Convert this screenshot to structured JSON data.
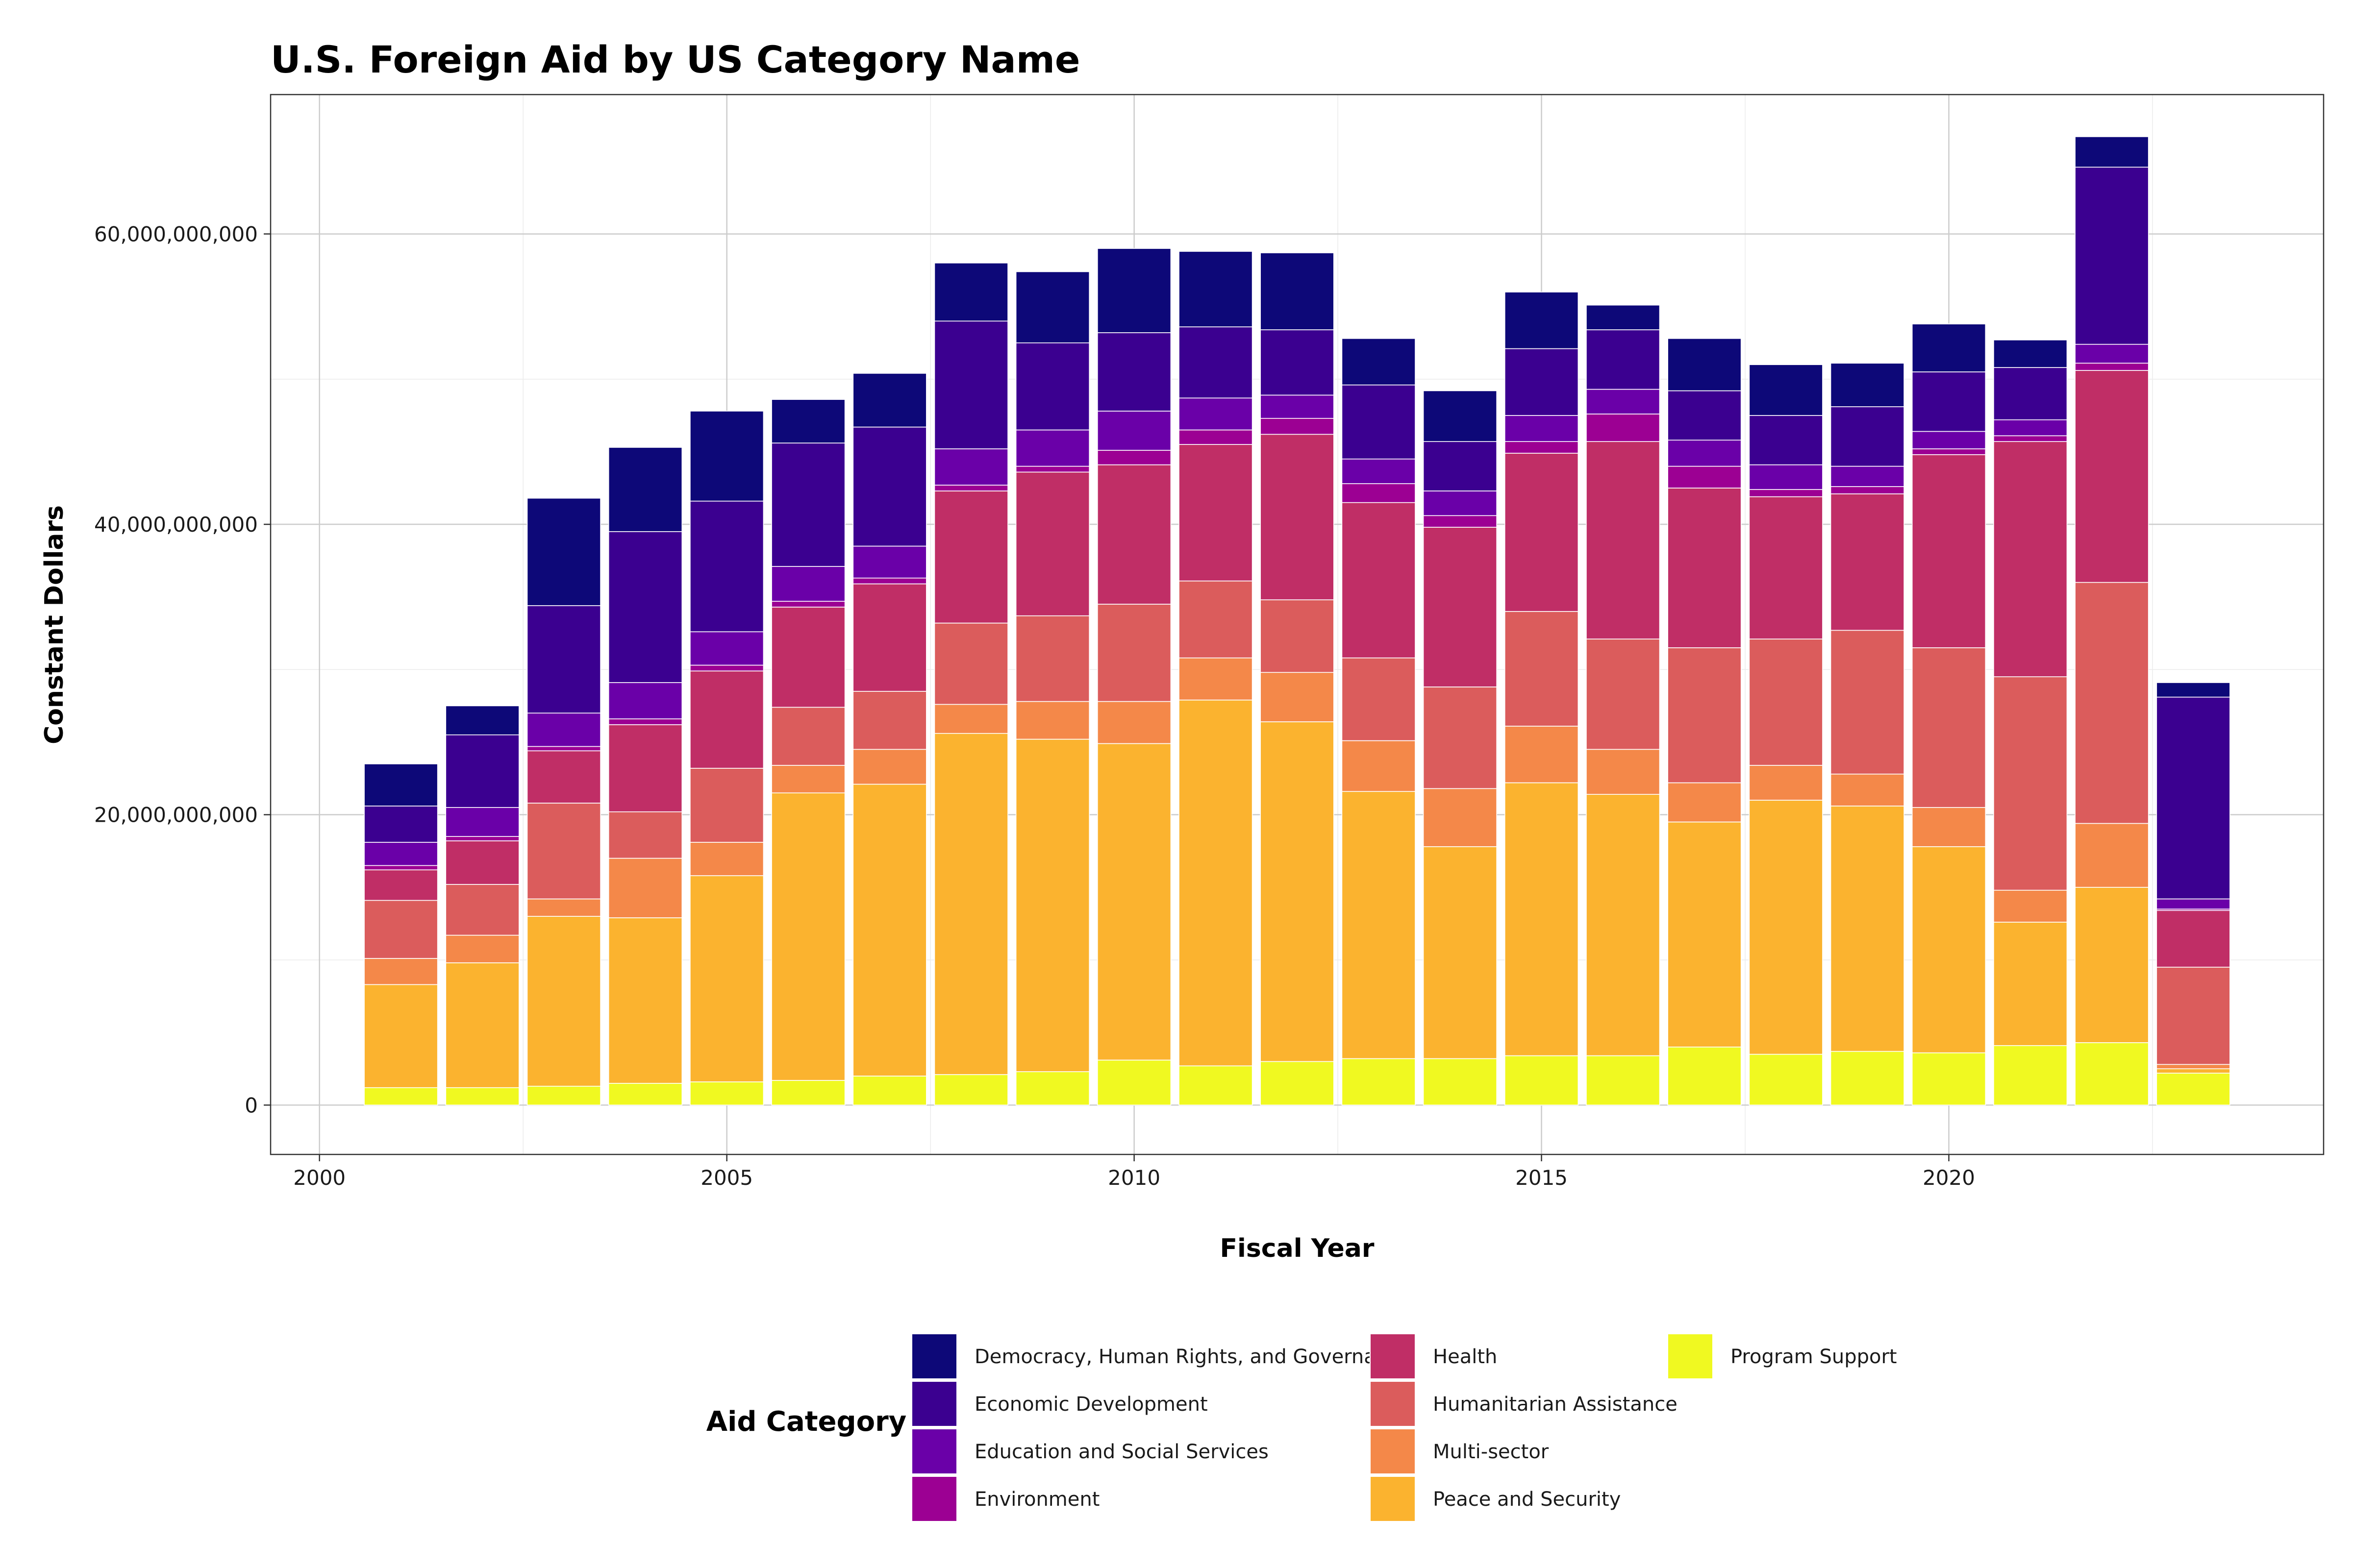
{
  "chart_data": {
    "type": "bar",
    "stacked": true,
    "title": "U.S. Foreign Aid by US Category Name",
    "xlabel": "Fiscal Year",
    "ylabel": "Constant Dollars",
    "xlim": [
      1999.4,
      2024.6
    ],
    "ylim": [
      -3400000000,
      69600000000
    ],
    "x_ticks": [
      2000,
      2005,
      2010,
      2015,
      2020
    ],
    "x_tick_labels": [
      "2000",
      "2005",
      "2010",
      "2015",
      "2020"
    ],
    "y_ticks": [
      0,
      20000000000,
      40000000000,
      60000000000
    ],
    "y_tick_labels": [
      "0",
      "20,000,000,000",
      "40,000,000,000",
      "60,000,000,000"
    ],
    "grid": true,
    "legend_title": "Aid Category",
    "legend_position": "bottom",
    "categories": [
      2001,
      2002,
      2003,
      2004,
      2005,
      2006,
      2007,
      2008,
      2009,
      2010,
      2011,
      2012,
      2013,
      2014,
      2015,
      2016,
      2017,
      2018,
      2019,
      2020,
      2021,
      2022,
      2023
    ],
    "series": [
      {
        "name": "Program Support",
        "color": "#f0f921",
        "values": [
          1200000000,
          1200000000,
          1300000000,
          1500000000,
          1600000000,
          1700000000,
          2000000000,
          2100000000,
          2300000000,
          3100000000,
          2700000000,
          3000000000,
          3200000000,
          3200000000,
          3400000000,
          3400000000,
          4000000000,
          3500000000,
          3700000000,
          3600000000,
          4100000000,
          4300000000,
          2200000000
        ]
      },
      {
        "name": "Peace and Security",
        "color": "#fbb32f",
        "values": [
          7100000000,
          8600000000,
          11700000000,
          11400000000,
          14200000000,
          19800000000,
          20100000000,
          23500000000,
          22900000000,
          21800000000,
          25200000000,
          23400000000,
          18400000000,
          14600000000,
          18800000000,
          18000000000,
          15500000000,
          17500000000,
          16900000000,
          14200000000,
          8500000000,
          10700000000,
          300000000
        ]
      },
      {
        "name": "Multi-sector",
        "color": "#f48849",
        "values": [
          1800000000,
          1900000000,
          1200000000,
          4100000000,
          2300000000,
          1900000000,
          2400000000,
          2000000000,
          2600000000,
          2900000000,
          2900000000,
          3400000000,
          3500000000,
          4000000000,
          3900000000,
          3100000000,
          2700000000,
          2400000000,
          2200000000,
          2700000000,
          2200000000,
          4400000000,
          300000000
        ]
      },
      {
        "name": "Humanitarian Assistance",
        "color": "#db5c5c",
        "values": [
          4000000000,
          3500000000,
          6600000000,
          3200000000,
          5100000000,
          4000000000,
          4000000000,
          5600000000,
          5900000000,
          6700000000,
          5300000000,
          5000000000,
          5700000000,
          7000000000,
          7900000000,
          7600000000,
          9300000000,
          8700000000,
          9900000000,
          11000000000,
          14700000000,
          16600000000,
          6700000000
        ]
      },
      {
        "name": "Health",
        "color": "#c02e66",
        "values": [
          2100000000,
          3000000000,
          3600000000,
          6000000000,
          6700000000,
          6900000000,
          7400000000,
          9100000000,
          9900000000,
          9600000000,
          9400000000,
          11400000000,
          10700000000,
          11000000000,
          10900000000,
          13600000000,
          11000000000,
          9800000000,
          9400000000,
          13300000000,
          16200000000,
          14600000000,
          3900000000
        ]
      },
      {
        "name": "Environment",
        "color": "#9c0093",
        "values": [
          300000000,
          300000000,
          300000000,
          400000000,
          400000000,
          400000000,
          400000000,
          400000000,
          400000000,
          1000000000,
          1000000000,
          1100000000,
          1300000000,
          800000000,
          800000000,
          1900000000,
          1500000000,
          500000000,
          500000000,
          400000000,
          400000000,
          500000000,
          100000000
        ]
      },
      {
        "name": "Education and Social Services",
        "color": "#6a00a8",
        "values": [
          1600000000,
          2000000000,
          2300000000,
          2500000000,
          2300000000,
          2400000000,
          2200000000,
          2500000000,
          2500000000,
          2700000000,
          2200000000,
          1600000000,
          1700000000,
          1700000000,
          1800000000,
          1700000000,
          1800000000,
          1700000000,
          1400000000,
          1200000000,
          1100000000,
          1300000000,
          700000000
        ]
      },
      {
        "name": "Economic Development",
        "color": "#3b0090",
        "values": [
          2500000000,
          5000000000,
          7400000000,
          10400000000,
          9000000000,
          8500000000,
          8200000000,
          8800000000,
          6000000000,
          5400000000,
          4900000000,
          4500000000,
          5100000000,
          3400000000,
          4600000000,
          4100000000,
          3400000000,
          3400000000,
          4100000000,
          4100000000,
          3600000000,
          12200000000,
          13900000000
        ]
      },
      {
        "name": "Democracy, Human Rights, and Governance",
        "color": "#0d0878",
        "values": [
          2900000000,
          2000000000,
          7400000000,
          5800000000,
          6200000000,
          3000000000,
          3700000000,
          4000000000,
          4900000000,
          5800000000,
          5200000000,
          5300000000,
          3200000000,
          3500000000,
          3900000000,
          1700000000,
          3600000000,
          3500000000,
          3000000000,
          3300000000,
          1900000000,
          2100000000,
          1000000000
        ]
      }
    ]
  }
}
